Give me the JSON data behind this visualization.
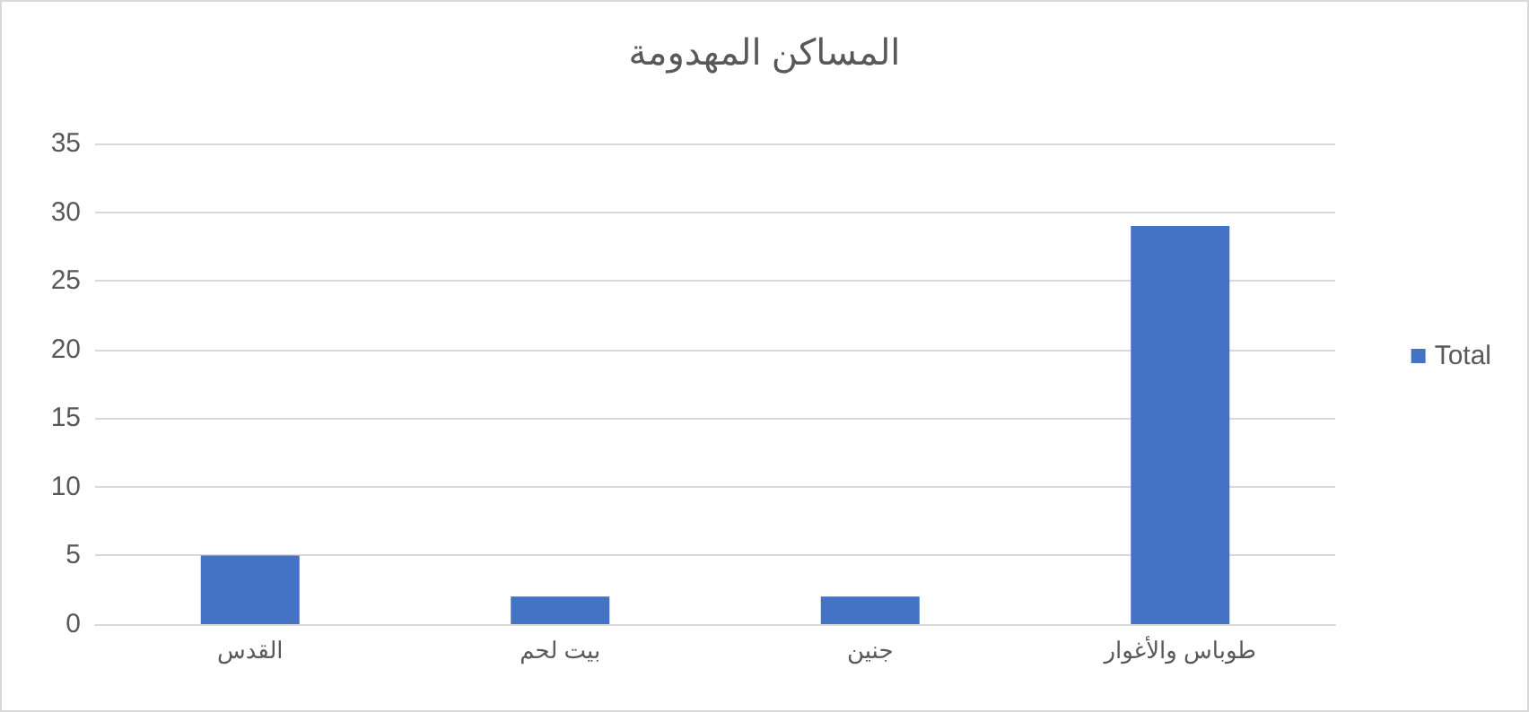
{
  "chart_data": {
    "type": "bar",
    "title": "المساكن المهدومة",
    "categories": [
      "القدس",
      "بيت لحم",
      "جنين",
      "طوباس والأغوار"
    ],
    "series": [
      {
        "name": "Total",
        "color": "#4472c4",
        "values": [
          5,
          2,
          2,
          29
        ]
      }
    ],
    "ylim": [
      0,
      35
    ],
    "yticks": [
      0,
      5,
      10,
      15,
      20,
      25,
      30,
      35
    ],
    "grid": "y",
    "legend": "right"
  }
}
